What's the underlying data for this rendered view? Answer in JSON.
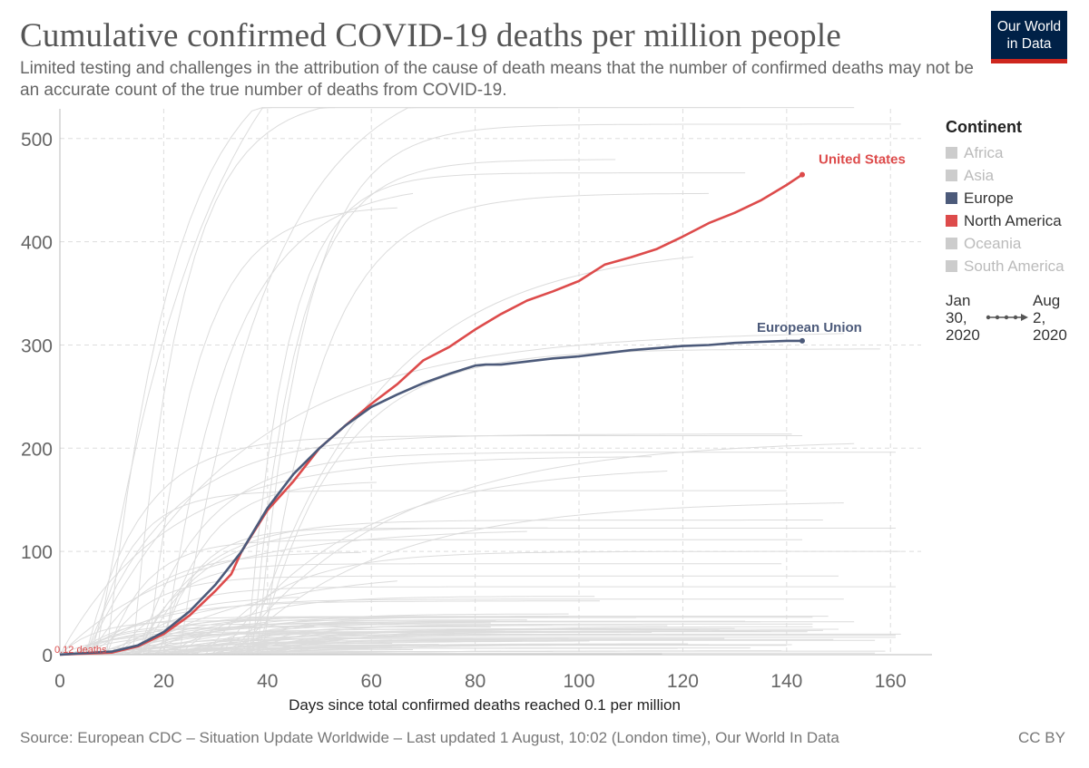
{
  "header": {
    "title": "Cumulative confirmed COVID-19 deaths per million people",
    "subtitle": "Limited testing and challenges in the attribution of the cause of death means that the number of confirmed deaths may not be an accurate count of the true number of deaths from COVID-19.",
    "logo_line1": "Our World",
    "logo_line2": "in Data"
  },
  "legend": {
    "title": "Continent",
    "items": [
      {
        "label": "Africa",
        "color": "#cccccc",
        "active": false
      },
      {
        "label": "Asia",
        "color": "#cccccc",
        "active": false
      },
      {
        "label": "Europe",
        "color": "#4c5a7a",
        "active": true
      },
      {
        "label": "North America",
        "color": "#dd4b4b",
        "active": true
      },
      {
        "label": "Oceania",
        "color": "#cccccc",
        "active": false
      },
      {
        "label": "South America",
        "color": "#cccccc",
        "active": false
      }
    ]
  },
  "timeline": {
    "start_month_day": "Jan",
    "start_day": "30,",
    "start_year": "2020",
    "end_month_day": "Aug",
    "end_day": "2,",
    "end_year": "2020"
  },
  "footer": {
    "source": "Source: European CDC – Situation Update Worldwide – Last updated 1 August, 10:02 (London time), Our World In Data",
    "license": "CC BY"
  },
  "chart_data": {
    "type": "line",
    "xlabel": "Days since total confirmed deaths reached 0.1 per million",
    "ylabel": "",
    "xlim": [
      0,
      168
    ],
    "ylim": [
      0,
      520
    ],
    "x_ticks": [
      0,
      20,
      40,
      60,
      80,
      100,
      120,
      140,
      160
    ],
    "y_ticks": [
      0,
      100,
      200,
      300,
      400,
      500
    ],
    "grid": true,
    "legend_position": "right",
    "start_annotation": "0.12 deaths",
    "series": [
      {
        "name": "United States",
        "color": "#dd4b4b",
        "x": [
          0,
          10,
          15,
          20,
          25,
          30,
          33,
          35,
          40,
          45,
          50,
          55,
          60,
          65,
          70,
          75,
          80,
          85,
          90,
          95,
          100,
          105,
          110,
          115,
          120,
          125,
          130,
          135,
          140,
          143
        ],
        "y": [
          0.12,
          2,
          8,
          20,
          38,
          62,
          78,
          100,
          140,
          168,
          200,
          222,
          243,
          262,
          285,
          298,
          315,
          330,
          343,
          352,
          362,
          378,
          385,
          393,
          405,
          418,
          428,
          440,
          455,
          465
        ]
      },
      {
        "name": "European Union",
        "color": "#4c5a7a",
        "x": [
          0,
          10,
          15,
          20,
          25,
          30,
          35,
          40,
          45,
          50,
          55,
          60,
          65,
          70,
          75,
          80,
          82,
          85,
          90,
          95,
          100,
          105,
          110,
          115,
          120,
          125,
          130,
          135,
          140,
          143
        ],
        "y": [
          0.12,
          3,
          9,
          22,
          42,
          68,
          100,
          142,
          175,
          200,
          222,
          240,
          252,
          263,
          272,
          280,
          281,
          281,
          284,
          287,
          289,
          292,
          295,
          297,
          299,
          300,
          302,
          303,
          304,
          304
        ]
      }
    ],
    "background_series_note": "other countries shown as light grey lines"
  }
}
